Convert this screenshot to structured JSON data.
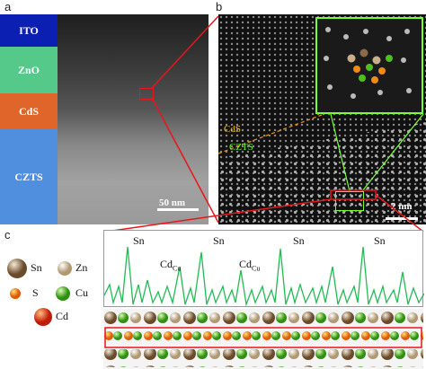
{
  "panels": {
    "a": {
      "letter": "a",
      "layers": [
        {
          "name": "ITO",
          "color": "#0b1fb3"
        },
        {
          "name": "ZnO",
          "color": "#55c98a"
        },
        {
          "name": "CdS",
          "color": "#e0652a"
        },
        {
          "name": "CZTS",
          "color": "#4f8fde"
        }
      ],
      "scale_bar": "50 nm"
    },
    "b": {
      "letter": "b",
      "labels": {
        "top": "CdS",
        "bottom": "CZTS"
      },
      "label_colors": {
        "top": "#f0c020",
        "bottom": "#66ff33"
      },
      "scale_bar": "2 nm"
    },
    "c": {
      "letter": "c",
      "legend": [
        {
          "symbol": "Sn",
          "color": "#8a6a48"
        },
        {
          "symbol": "Zn",
          "color": "#c9b08a"
        },
        {
          "symbol": "S",
          "color": "#f08a10"
        },
        {
          "symbol": "Cu",
          "color": "#4fbf20"
        },
        {
          "symbol": "Cd",
          "color": "#e03a14"
        }
      ],
      "profile_labels": [
        "Sn",
        "Sn",
        "Sn",
        "Sn",
        "Cd",
        "Cu",
        "Cd",
        "Cu"
      ]
    }
  },
  "colors": {
    "highlight": "#e8161b",
    "inset_border": "#77ff33",
    "profile_line": "#22bb55"
  }
}
